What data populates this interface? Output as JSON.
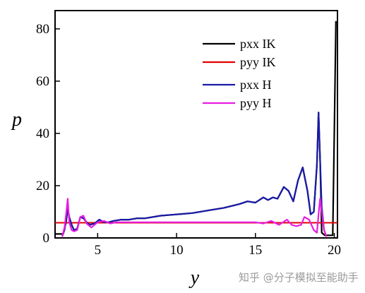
{
  "chart_data": {
    "type": "line",
    "title": "",
    "xlabel": "y",
    "ylabel": "p",
    "xlim": [
      2.3,
      20.2
    ],
    "ylim": [
      0,
      87
    ],
    "xticks": [
      5,
      10,
      15,
      20
    ],
    "yticks": [
      0,
      20,
      40,
      60,
      80
    ],
    "legend_position": "top-right",
    "series": [
      {
        "name": "pxx IK",
        "color": "#000000",
        "x": [
          2.3,
          2.6,
          2.8,
          3.0,
          3.1,
          3.2,
          3.35,
          3.5,
          3.7,
          3.9,
          4.1,
          4.3,
          4.5,
          4.8,
          5.1,
          5.4,
          5.7,
          6.0,
          6.5,
          7.0,
          7.5,
          8.0,
          9.0,
          10.0,
          11.0,
          12.0,
          13.0,
          14.0,
          14.5,
          15.0,
          15.5,
          15.8,
          16.1,
          16.4,
          16.8,
          17.1,
          17.4,
          17.7,
          18.0,
          18.3,
          18.5,
          18.7,
          18.9,
          19.0,
          19.1,
          19.2,
          19.4,
          19.6,
          19.75,
          19.8,
          19.85,
          19.9,
          20.0,
          20.1
        ],
        "values": [
          1.5,
          1.5,
          1.5,
          6,
          11,
          8,
          5,
          3,
          3.5,
          8,
          7.5,
          6,
          5,
          5.5,
          7,
          6,
          6,
          6.5,
          7,
          7,
          7.5,
          7.5,
          8.5,
          9,
          9.5,
          10.5,
          11.5,
          13,
          14,
          13.5,
          15.5,
          14.5,
          15.5,
          15,
          19.5,
          18,
          14,
          22,
          27,
          18,
          9,
          10,
          28,
          48,
          30,
          2,
          1,
          1,
          1,
          1,
          1,
          1,
          40,
          83
        ]
      },
      {
        "name": "pyy IK",
        "color": "#e00000",
        "x": [
          2.3,
          20.2
        ],
        "values": [
          5.8,
          5.8
        ]
      },
      {
        "name": "pxx H",
        "color": "#1a1aa8",
        "x": [
          2.75,
          2.9,
          3.0,
          3.1,
          3.2,
          3.35,
          3.5,
          3.7,
          3.9,
          4.1,
          4.3,
          4.5,
          4.8,
          5.1,
          5.4,
          5.7,
          6.0,
          6.5,
          7.0,
          7.5,
          8.0,
          9.0,
          10.0,
          11.0,
          12.0,
          13.0,
          14.0,
          14.5,
          15.0,
          15.5,
          15.8,
          16.1,
          16.4,
          16.8,
          17.1,
          17.4,
          17.7,
          18.0,
          18.3,
          18.5,
          18.7,
          18.9,
          19.0,
          19.1,
          19.2,
          19.35,
          19.5
        ],
        "values": [
          0.5,
          3,
          7,
          11,
          8,
          5,
          3,
          3.5,
          8,
          7.5,
          6,
          5,
          5.5,
          7,
          6,
          6,
          6.5,
          7,
          7,
          7.5,
          7.5,
          8.5,
          9,
          9.5,
          10.5,
          11.5,
          13,
          14,
          13.5,
          15.5,
          14.5,
          15.5,
          15,
          19.5,
          18,
          14,
          22,
          27,
          18,
          9,
          10,
          28,
          48,
          30,
          12,
          3,
          0.5
        ]
      },
      {
        "name": "pyy H",
        "color": "#e81ce0",
        "x": [
          2.75,
          2.9,
          3.0,
          3.1,
          3.2,
          3.35,
          3.5,
          3.7,
          3.9,
          4.1,
          4.3,
          4.6,
          5.0,
          5.4,
          5.8,
          6.2,
          7.0,
          8.0,
          10.0,
          12.0,
          14.0,
          15.0,
          15.5,
          16.0,
          16.5,
          17.0,
          17.3,
          17.6,
          17.9,
          18.1,
          18.4,
          18.7,
          18.9,
          19.0,
          19.1,
          19.2,
          19.35,
          19.5
        ],
        "values": [
          0.5,
          4,
          9,
          15,
          6,
          3,
          2.5,
          3,
          8,
          8.5,
          5.5,
          4,
          6,
          6.5,
          5.5,
          6,
          6,
          6,
          6,
          6,
          6,
          6,
          5.5,
          6.5,
          5,
          7,
          5,
          4.5,
          5,
          8,
          7,
          3,
          2,
          9,
          15,
          10,
          3,
          0.5
        ]
      }
    ]
  },
  "watermark": "知乎 @分子模拟至能助手"
}
